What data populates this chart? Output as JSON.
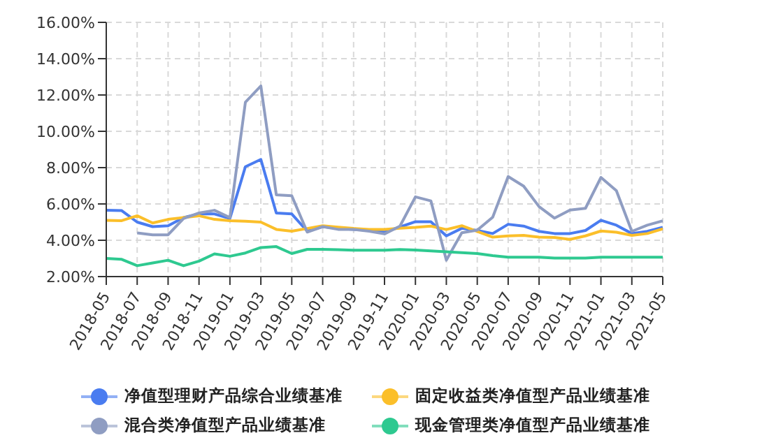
{
  "chart_data": {
    "type": "line",
    "categories": [
      "2018-05",
      null,
      "2018-07",
      null,
      "2018-09",
      null,
      "2018-11",
      null,
      "2019-01",
      null,
      "2019-03",
      null,
      "2019-05",
      null,
      "2019-07",
      null,
      "2019-09",
      null,
      "2019-11",
      null,
      "2020-01",
      null,
      "2020-03",
      null,
      "2020-05",
      null,
      "2020-07",
      null,
      "2020-09",
      null,
      "2020-11",
      null,
      "2021-01",
      null,
      "2021-03",
      null,
      "2021-05"
    ],
    "series": [
      {
        "name": "净值型理财产品综合业绩基准",
        "color": "#4a7cf0",
        "values": [
          5.65,
          5.63,
          5.0,
          4.75,
          4.8,
          5.25,
          5.45,
          5.45,
          5.2,
          8.05,
          8.45,
          5.5,
          5.45,
          4.5,
          4.75,
          4.65,
          4.6,
          4.55,
          4.45,
          4.73,
          5.02,
          5.02,
          4.24,
          4.66,
          4.54,
          4.37,
          4.88,
          4.78,
          4.49,
          4.37,
          4.37,
          4.54,
          5.1,
          4.83,
          4.37,
          4.49,
          4.71
        ]
      },
      {
        "name": "固定收益类净值型产品业绩基准",
        "color": "#fbbf2a",
        "values": [
          5.1,
          5.08,
          5.35,
          4.95,
          5.15,
          5.25,
          5.35,
          5.15,
          5.08,
          5.05,
          5.0,
          4.6,
          4.5,
          4.65,
          4.8,
          4.72,
          4.65,
          4.6,
          4.6,
          4.66,
          4.71,
          4.78,
          4.59,
          4.8,
          4.49,
          4.17,
          4.24,
          4.27,
          4.17,
          4.15,
          4.05,
          4.24,
          4.51,
          4.44,
          4.27,
          4.37,
          4.63
        ]
      },
      {
        "name": "混合类净值型产品业绩基准",
        "color": "#8f9dc2",
        "values": [
          null,
          null,
          4.4,
          4.3,
          4.3,
          5.2,
          5.5,
          5.65,
          5.25,
          11.6,
          12.5,
          6.5,
          6.45,
          4.45,
          4.75,
          4.6,
          4.6,
          4.5,
          4.35,
          4.78,
          6.39,
          6.17,
          2.9,
          4.41,
          4.56,
          5.27,
          7.51,
          6.98,
          5.85,
          5.22,
          5.66,
          5.76,
          7.46,
          6.73,
          4.49,
          4.83,
          5.07
        ]
      },
      {
        "name": "现金管理类净值型产品业绩基准",
        "color": "#2ec990",
        "values": [
          3.0,
          2.95,
          2.6,
          2.75,
          2.9,
          2.6,
          2.85,
          3.25,
          3.12,
          3.3,
          3.6,
          3.65,
          3.27,
          3.5,
          3.5,
          3.48,
          3.45,
          3.45,
          3.45,
          3.49,
          3.46,
          3.41,
          3.37,
          3.32,
          3.27,
          3.15,
          3.07,
          3.07,
          3.07,
          3.02,
          3.02,
          3.02,
          3.07,
          3.07,
          3.07,
          3.07,
          3.07
        ]
      }
    ],
    "ylim": [
      2,
      16
    ],
    "yticks": [
      {
        "value": 2,
        "label": "2.00%"
      },
      {
        "value": 4,
        "label": "4.00%"
      },
      {
        "value": 6,
        "label": "6.00%"
      },
      {
        "value": 8,
        "label": "8.00%"
      },
      {
        "value": 10,
        "label": "10.00%"
      },
      {
        "value": 12,
        "label": "12.00%"
      },
      {
        "value": 14,
        "label": "14.00%"
      },
      {
        "value": 16,
        "label": "16.00%"
      }
    ],
    "grid": true,
    "legend": "bottom",
    "marker": "none",
    "line_style": "solid"
  }
}
